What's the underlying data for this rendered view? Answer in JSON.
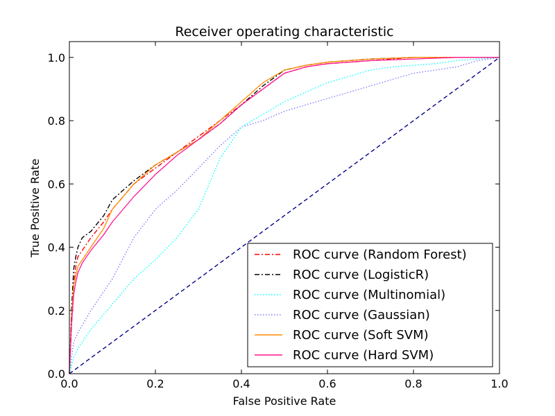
{
  "chart_data": {
    "type": "line",
    "title": "Receiver operating characteristic",
    "xlabel": "False Positive Rate",
    "ylabel": "True Positive Rate",
    "xlim": [
      0.0,
      1.0
    ],
    "ylim": [
      0.0,
      1.05
    ],
    "xticks": [
      0.0,
      0.2,
      0.4,
      0.6,
      0.8,
      1.0
    ],
    "yticks": [
      0.0,
      0.2,
      0.4,
      0.6,
      0.8,
      1.0
    ],
    "xtick_labels": [
      "0.0",
      "0.2",
      "0.4",
      "0.6",
      "0.8",
      "1.0"
    ],
    "ytick_labels": [
      "0.0",
      "0.2",
      "0.4",
      "0.6",
      "0.8",
      "1.0"
    ],
    "grid": false,
    "legend_position": "bottom-right",
    "series": [
      {
        "name": "ROC curve (Random Forest)",
        "color": "#ff0000",
        "dash": "dashdot",
        "x": [
          0,
          0.005,
          0.01,
          0.015,
          0.02,
          0.03,
          0.05,
          0.08,
          0.1,
          0.15,
          0.2,
          0.25,
          0.3,
          0.35,
          0.4,
          0.45,
          0.5,
          0.55,
          0.6,
          0.7,
          0.8,
          0.9,
          1.0
        ],
        "y": [
          0,
          0.15,
          0.28,
          0.34,
          0.37,
          0.39,
          0.43,
          0.48,
          0.52,
          0.6,
          0.65,
          0.7,
          0.75,
          0.8,
          0.85,
          0.9,
          0.95,
          0.97,
          0.98,
          0.99,
          1.0,
          1.0,
          1.0
        ]
      },
      {
        "name": "ROC curve (LogisticR)",
        "color": "#000000",
        "dash": "dashdot",
        "x": [
          0,
          0.005,
          0.01,
          0.015,
          0.02,
          0.03,
          0.05,
          0.08,
          0.1,
          0.15,
          0.2,
          0.25,
          0.3,
          0.35,
          0.4,
          0.45,
          0.5,
          0.55,
          0.6,
          0.7,
          0.8,
          0.9,
          1.0
        ],
        "y": [
          0,
          0.2,
          0.33,
          0.37,
          0.4,
          0.43,
          0.45,
          0.5,
          0.55,
          0.61,
          0.66,
          0.7,
          0.74,
          0.79,
          0.85,
          0.91,
          0.96,
          0.975,
          0.985,
          0.995,
          1.0,
          1.0,
          1.0
        ]
      },
      {
        "name": "ROC curve (Multinomial)",
        "color": "#00ffff",
        "dash": "dotted",
        "x": [
          0,
          0.01,
          0.02,
          0.05,
          0.1,
          0.15,
          0.2,
          0.25,
          0.3,
          0.35,
          0.4,
          0.45,
          0.5,
          0.55,
          0.6,
          0.65,
          0.7,
          0.75,
          0.8,
          0.85,
          0.9,
          0.95,
          1.0
        ],
        "y": [
          0,
          0.05,
          0.08,
          0.14,
          0.22,
          0.3,
          0.36,
          0.43,
          0.52,
          0.68,
          0.78,
          0.82,
          0.86,
          0.89,
          0.92,
          0.94,
          0.96,
          0.97,
          0.975,
          0.98,
          0.99,
          0.995,
          1.0
        ]
      },
      {
        "name": "ROC curve (Gaussian)",
        "color": "#7b7bff",
        "dash": "dotted",
        "x": [
          0,
          0.01,
          0.02,
          0.05,
          0.1,
          0.15,
          0.2,
          0.25,
          0.3,
          0.35,
          0.4,
          0.45,
          0.5,
          0.55,
          0.6,
          0.65,
          0.7,
          0.75,
          0.8,
          0.85,
          0.9,
          0.95,
          1.0
        ],
        "y": [
          0,
          0.1,
          0.13,
          0.2,
          0.3,
          0.43,
          0.52,
          0.58,
          0.65,
          0.72,
          0.78,
          0.8,
          0.83,
          0.85,
          0.87,
          0.89,
          0.91,
          0.93,
          0.95,
          0.96,
          0.97,
          0.99,
          1.0
        ]
      },
      {
        "name": "ROC curve (Soft SVM)",
        "color": "#ff8c00",
        "dash": "solid",
        "x": [
          0,
          0.005,
          0.01,
          0.015,
          0.02,
          0.03,
          0.05,
          0.08,
          0.1,
          0.15,
          0.2,
          0.25,
          0.3,
          0.35,
          0.4,
          0.45,
          0.5,
          0.55,
          0.6,
          0.7,
          0.8,
          0.9,
          1.0
        ],
        "y": [
          0,
          0.18,
          0.28,
          0.31,
          0.34,
          0.36,
          0.4,
          0.46,
          0.52,
          0.6,
          0.66,
          0.7,
          0.74,
          0.8,
          0.86,
          0.92,
          0.96,
          0.975,
          0.985,
          0.995,
          1.0,
          1.0,
          1.0
        ]
      },
      {
        "name": "ROC curve (Hard SVM)",
        "color": "#ff1493",
        "dash": "solid",
        "x": [
          0,
          0.005,
          0.01,
          0.015,
          0.02,
          0.03,
          0.05,
          0.08,
          0.1,
          0.15,
          0.2,
          0.25,
          0.3,
          0.35,
          0.4,
          0.45,
          0.5,
          0.55,
          0.6,
          0.7,
          0.8,
          0.9,
          1.0
        ],
        "y": [
          0,
          0.16,
          0.25,
          0.29,
          0.32,
          0.35,
          0.39,
          0.44,
          0.48,
          0.56,
          0.63,
          0.69,
          0.74,
          0.79,
          0.85,
          0.9,
          0.95,
          0.97,
          0.98,
          0.99,
          0.995,
          1.0,
          1.0
        ]
      },
      {
        "name": "",
        "color": "#00008b",
        "dash": "dashed",
        "x": [
          0.0,
          1.0
        ],
        "y": [
          0.0,
          1.0
        ]
      }
    ]
  }
}
